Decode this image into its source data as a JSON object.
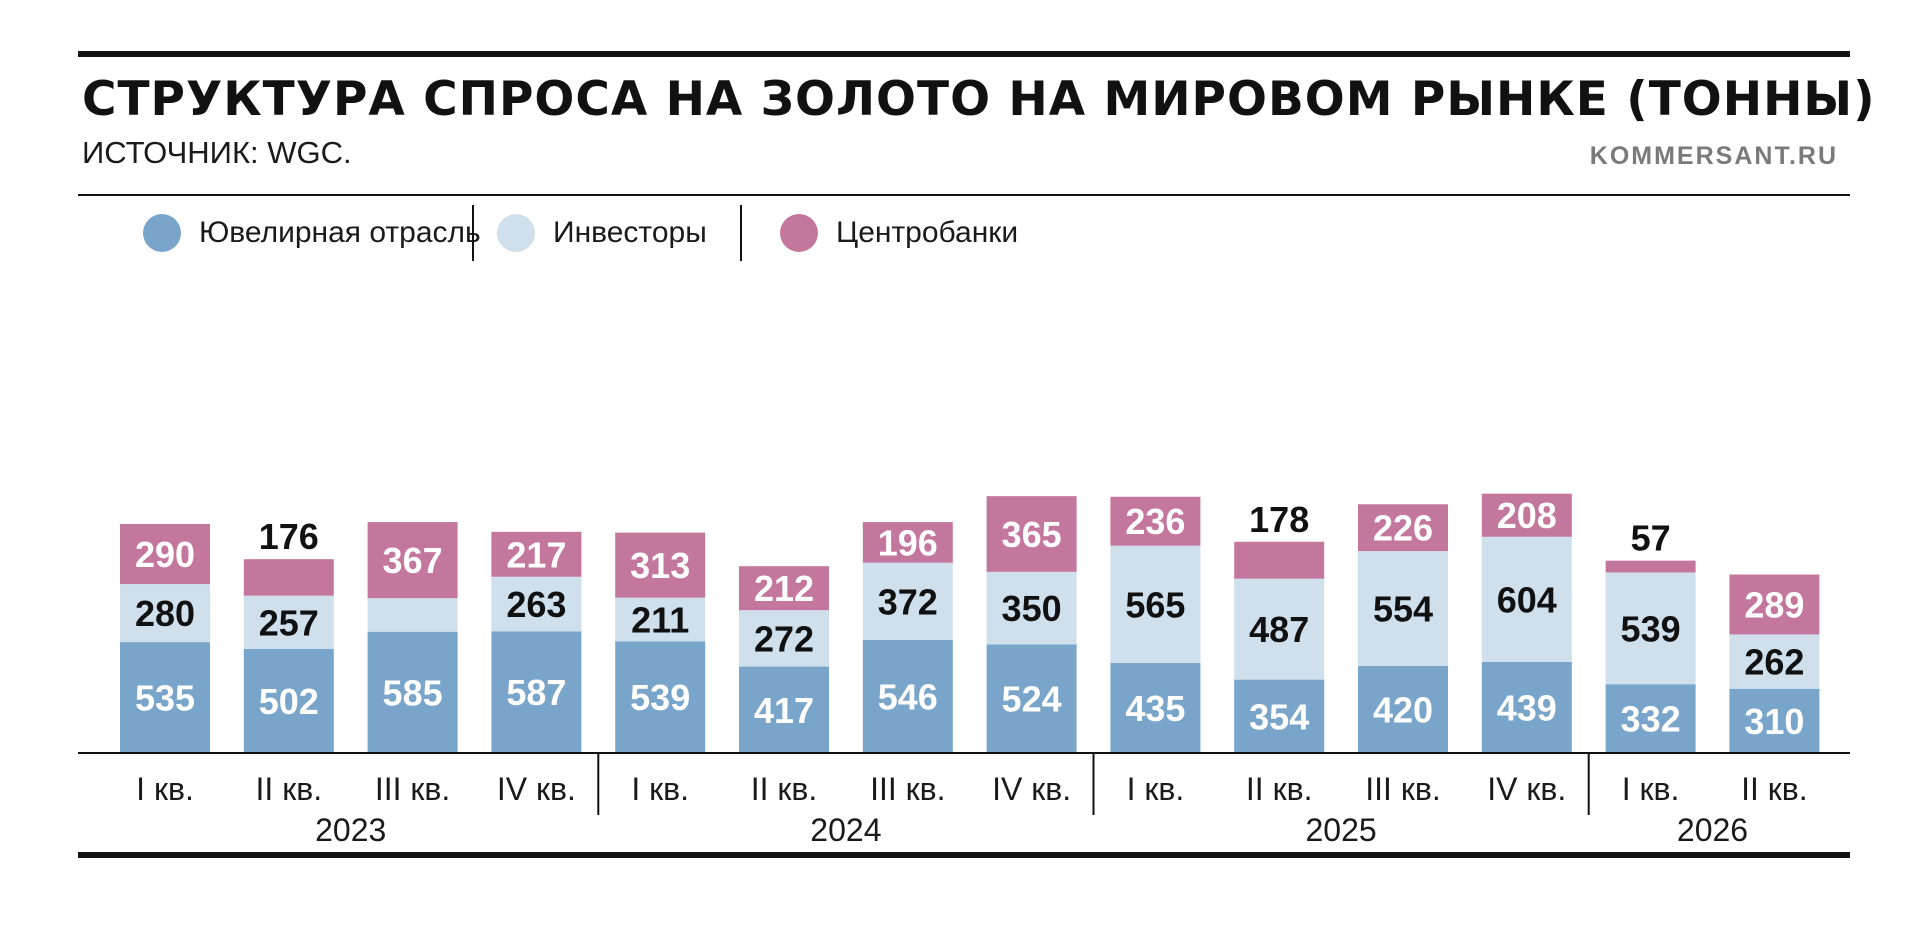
{
  "header": {
    "title": "СТРУКТУРА СПРОСА НА ЗОЛОТО НА МИРОВОМ РЫНКЕ (ТОННЫ)",
    "source": "ИСТОЧНИК: WGC.",
    "brand": "KOMMERSANT.RU"
  },
  "legend": [
    "Ювелирная отрасль",
    "Инвесторы",
    "Центробанки"
  ],
  "colors": {
    "jewelry": "#79a5ca",
    "investors": "#cfdfeb",
    "central_banks": "#c4779c",
    "rule": "#111111"
  },
  "chart_data": {
    "type": "bar",
    "stacked": true,
    "categories": [
      "I кв.",
      "II кв.",
      "III кв.",
      "IV кв.",
      "I кв.",
      "II кв.",
      "III кв.",
      "IV кв.",
      "I кв.",
      "II кв.",
      "III кв.",
      "IV кв.",
      "I кв.",
      "II кв."
    ],
    "years": [
      {
        "label": "2023",
        "count": 4
      },
      {
        "label": "2024",
        "count": 4
      },
      {
        "label": "2025",
        "count": 4
      },
      {
        "label": "2026",
        "count": 2
      }
    ],
    "series": [
      {
        "name": "Ювелирная отрасль",
        "values": [
          535,
          502,
          585,
          587,
          539,
          417,
          546,
          524,
          435,
          354,
          420,
          439,
          332,
          310
        ]
      },
      {
        "name": "Инвесторы",
        "values": [
          280,
          257,
          162,
          263,
          211,
          272,
          372,
          350,
          565,
          487,
          554,
          604,
          539,
          262
        ]
      },
      {
        "name": "Центробанки",
        "values": [
          290,
          176,
          367,
          217,
          313,
          212,
          196,
          365,
          236,
          178,
          226,
          208,
          57,
          289
        ]
      }
    ],
    "legend_position": "top-left",
    "grid": false
  }
}
